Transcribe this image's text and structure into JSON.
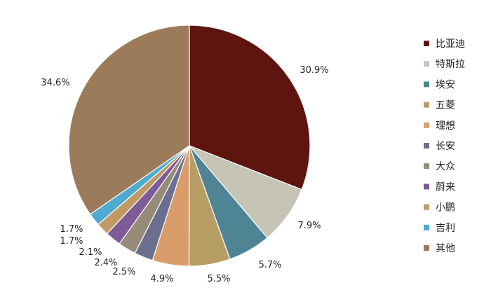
{
  "chart_data": {
    "type": "pie",
    "title": "",
    "legend_position": "right",
    "slices": [
      {
        "name": "比亚迪",
        "value": 30.9,
        "label": "30.9%",
        "color": "#5e150f"
      },
      {
        "name": "特斯拉",
        "value": 7.9,
        "label": "7.9%",
        "color": "#c5c4b5"
      },
      {
        "name": "埃安",
        "value": 5.7,
        "label": "5.7%",
        "color": "#4e8494"
      },
      {
        "name": "五菱",
        "value": 5.5,
        "label": "5.5%",
        "color": "#b69d64"
      },
      {
        "name": "理想",
        "value": 4.9,
        "label": "4.9%",
        "color": "#d89d6b"
      },
      {
        "name": "长安",
        "value": 2.5,
        "label": "2.5%",
        "color": "#6b6e8d"
      },
      {
        "name": "大众",
        "value": 2.4,
        "label": "2.4%",
        "color": "#968a78"
      },
      {
        "name": "蔚来",
        "value": 2.1,
        "label": "2.1%",
        "color": "#7d5b96"
      },
      {
        "name": "小鹏",
        "value": 1.7,
        "label": "1.7%",
        "color": "#bf9a62"
      },
      {
        "name": "吉利",
        "value": 1.7,
        "label": "1.7%",
        "color": "#4eaad0"
      },
      {
        "name": "其他",
        "value": 34.6,
        "label": "34.6%",
        "color": "#9c7b5a"
      }
    ]
  }
}
